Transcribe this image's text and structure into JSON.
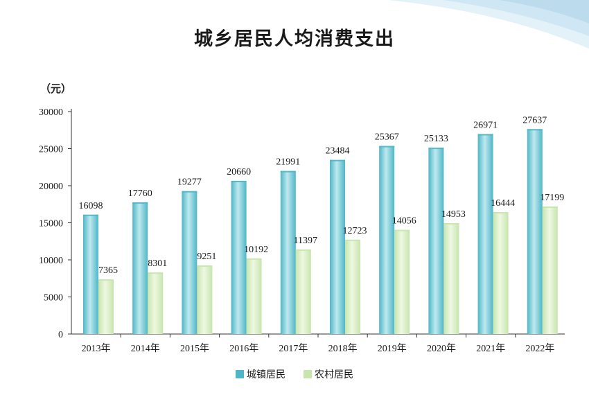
{
  "title": "城乡居民人均消费支出",
  "unit_label": "（元）",
  "colors": {
    "urban": "#4fb6c8",
    "urban_light": "#bfe9ee",
    "rural": "#c7e5ad",
    "rural_light": "#eef8e2",
    "axis": "#333333",
    "decor": "#cfe7f4"
  },
  "chart_data": {
    "type": "bar",
    "title": "城乡居民人均消费支出",
    "ylabel": "（元）",
    "xlabel": "",
    "ylim": [
      0,
      30000
    ],
    "yticks": [
      0,
      5000,
      10000,
      15000,
      20000,
      25000,
      30000
    ],
    "categories": [
      "2013年",
      "2014年",
      "2015年",
      "2016年",
      "2017年",
      "2018年",
      "2019年",
      "2020年",
      "2021年",
      "2022年"
    ],
    "series": [
      {
        "name": "城镇居民",
        "values": [
          16098,
          17760,
          19277,
          20660,
          21991,
          23484,
          25367,
          25133,
          26971,
          27637
        ]
      },
      {
        "name": "农村居民",
        "values": [
          7365,
          8301,
          9251,
          10192,
          11397,
          12723,
          14056,
          14953,
          16444,
          17199
        ]
      }
    ],
    "legend_position": "bottom",
    "grid": false
  }
}
